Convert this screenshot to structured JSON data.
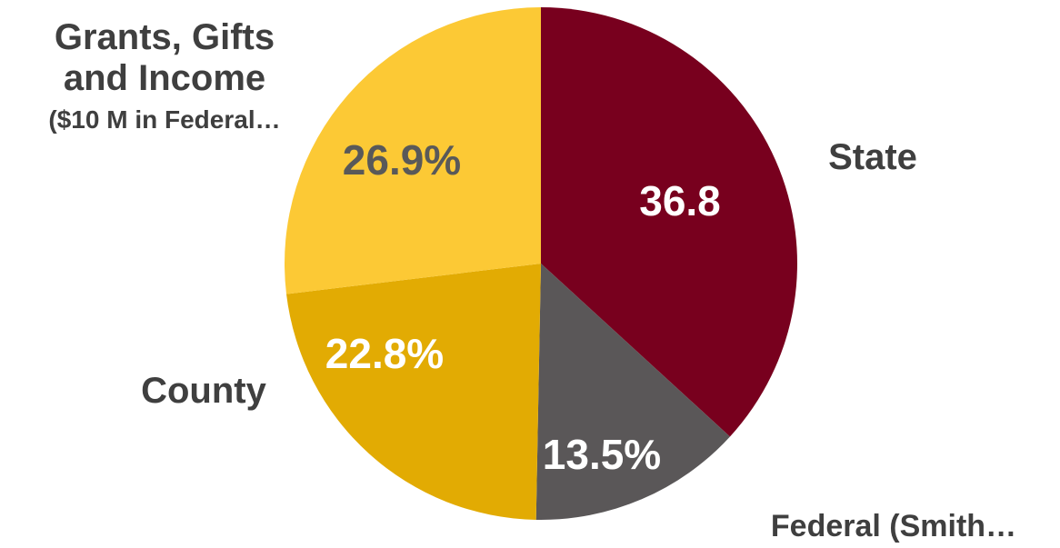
{
  "chart_data": {
    "type": "pie",
    "title": "",
    "colors": {
      "label_dark": "#3f3f3f",
      "label_light": "#ffffff",
      "value_dark": "#595959"
    },
    "slices": [
      {
        "name": "State",
        "value": 36.8,
        "value_label": "36.8",
        "color": "#78001e",
        "category_lines": [
          "State"
        ]
      },
      {
        "name": "Federal (Smith…",
        "value": 13.5,
        "value_label": "13.5%",
        "color": "#5a5758",
        "category_lines": [
          "Federal (Smith…"
        ]
      },
      {
        "name": "County",
        "value": 22.8,
        "value_label": "22.8%",
        "color": "#e2ab03",
        "category_lines": [
          "County"
        ]
      },
      {
        "name": "Grants, Gifts and Income ($10 M in Federal…",
        "value": 26.9,
        "value_label": "26.9%",
        "color": "#fcc935",
        "category_lines": [
          "Grants, Gifts",
          "and Income",
          "($10 M in Federal…"
        ]
      }
    ]
  }
}
